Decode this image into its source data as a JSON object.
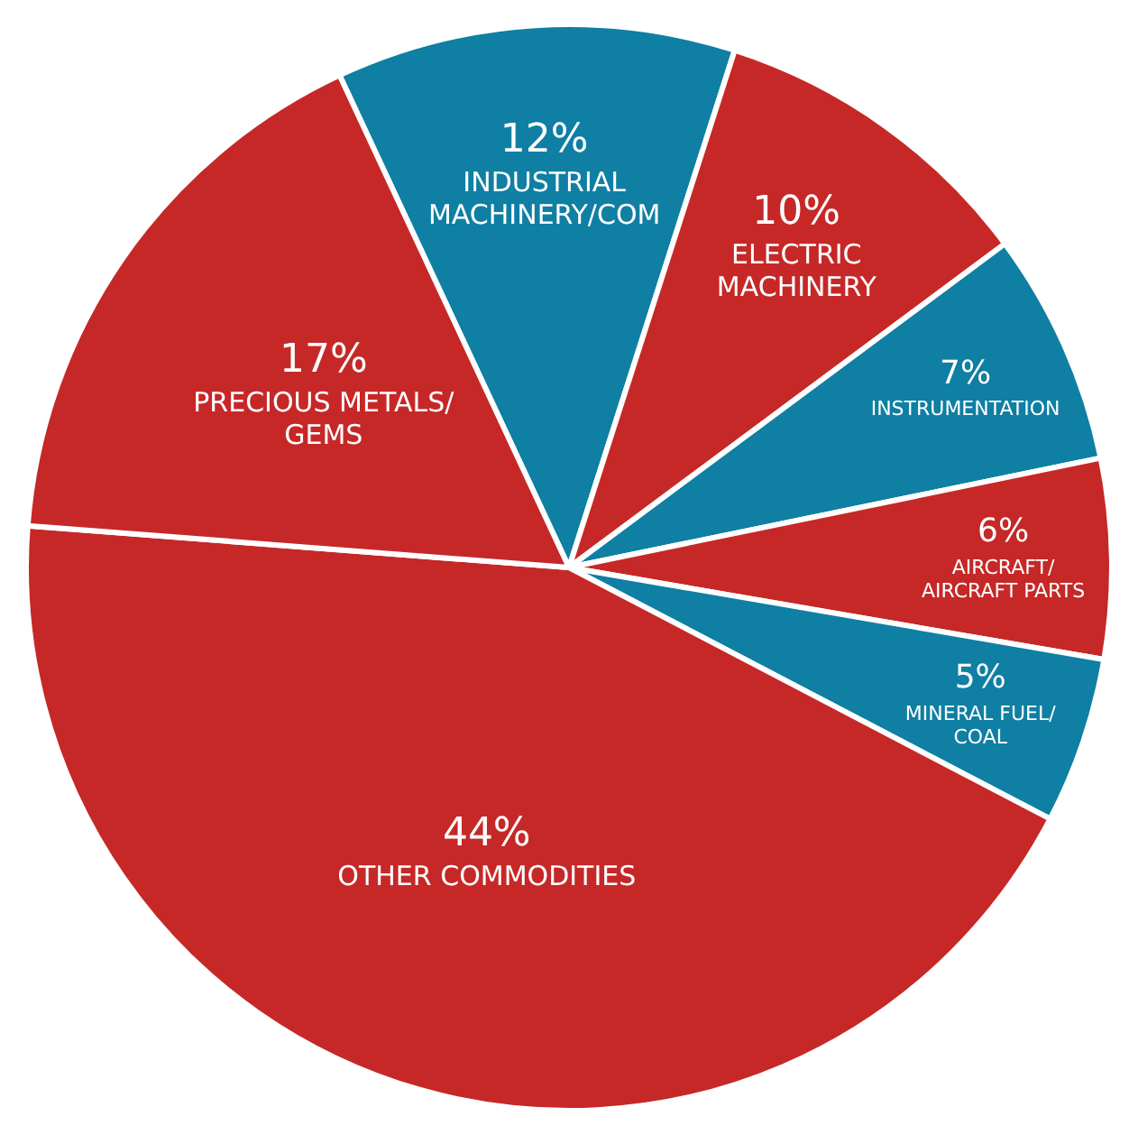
{
  "chart_data": {
    "type": "pie",
    "categories": [
      "INDUSTRIAL MACHINERY/COM",
      "ELECTRIC MACHINERY",
      "INSTRUMENTATION",
      "AIRCRAFT/AIRCRAFT PARTS",
      "MINERAL FUEL/COAL",
      "OTHER COMMODITIES",
      "PRECIOUS METALS/GEMS"
    ],
    "values": [
      12,
      10,
      7,
      6,
      5,
      44,
      17
    ],
    "value_labels": [
      "12%",
      "10%",
      "7%",
      "6%",
      "5%",
      "44%",
      "17%"
    ],
    "colors": [
      "#0f7fa3",
      "#c62828",
      "#0f7fa3",
      "#c62828",
      "#0f7fa3",
      "#c62828",
      "#c62828"
    ],
    "legend": false
  }
}
